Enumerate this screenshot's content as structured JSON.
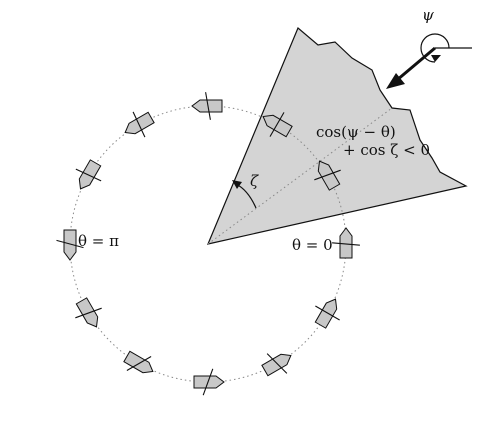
{
  "labels": {
    "theta_pi": "θ = π",
    "theta_zero": "θ = 0",
    "zeta": "ζ",
    "psi": "ψ",
    "condition_line1": "cos(ψ − θ)",
    "condition_line2": "+ cos ζ < 0"
  },
  "boats": {
    "count": 12,
    "headings_deg": [
      0,
      30,
      60,
      90,
      120,
      150,
      180,
      210,
      240,
      270,
      300,
      330
    ],
    "paddle_offsets_deg": [
      5,
      10,
      0,
      -10,
      5,
      -5,
      15,
      10,
      30,
      20,
      -15,
      0
    ]
  },
  "colors": {
    "sector_fill": "#d4d4d4",
    "boat_fill": "#c8c8c8",
    "stroke": "#111111",
    "circle_dots": "#888888"
  }
}
